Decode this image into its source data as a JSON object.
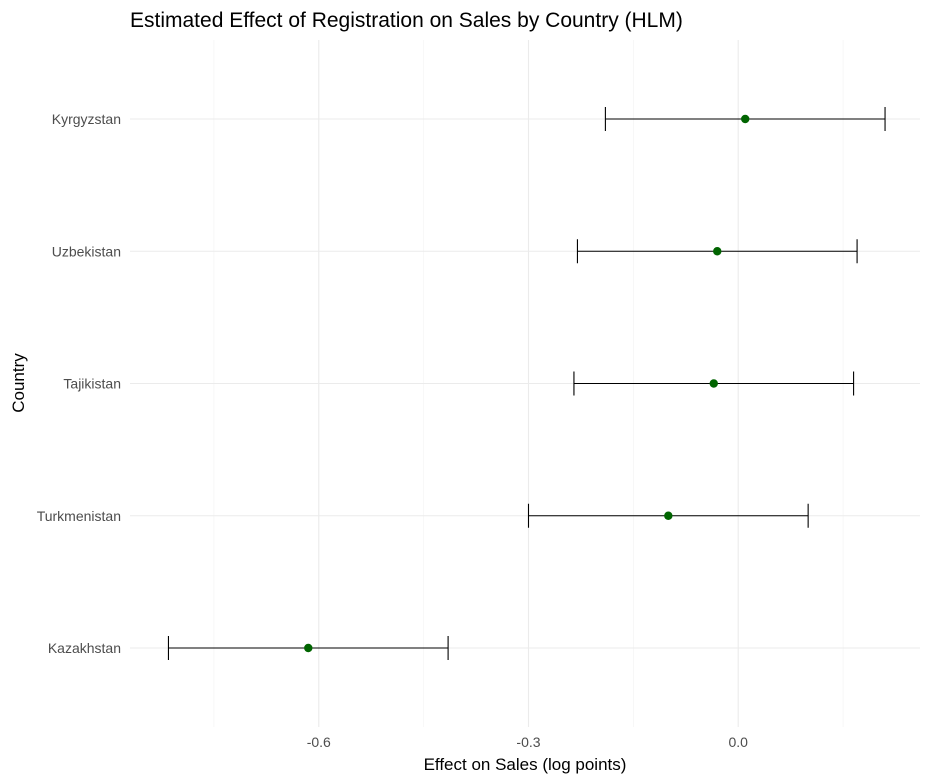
{
  "chart_data": {
    "type": "scatter",
    "subtype": "point-with-errorbars",
    "title": "Estimated Effect of Registration on Sales by Country (HLM)",
    "xlabel": "Effect on Sales (log points)",
    "ylabel": "Country",
    "xlim": [
      -0.87,
      0.26
    ],
    "x_ticks": [
      -0.6,
      -0.3,
      0.0
    ],
    "x_tick_labels": [
      "-0.6",
      "-0.3",
      "0.0"
    ],
    "grid": true,
    "point_color": "#006400",
    "errorbar_color": "#000000",
    "categories": [
      "Kyrgyzstan",
      "Uzbekistan",
      "Tajikistan",
      "Turkmenistan",
      "Kazakhstan"
    ],
    "estimates": [
      0.01,
      -0.03,
      -0.035,
      -0.1,
      -0.615
    ],
    "lower": [
      -0.19,
      -0.23,
      -0.235,
      -0.3,
      -0.815
    ],
    "upper": [
      0.21,
      0.17,
      0.165,
      0.1,
      -0.415
    ]
  }
}
